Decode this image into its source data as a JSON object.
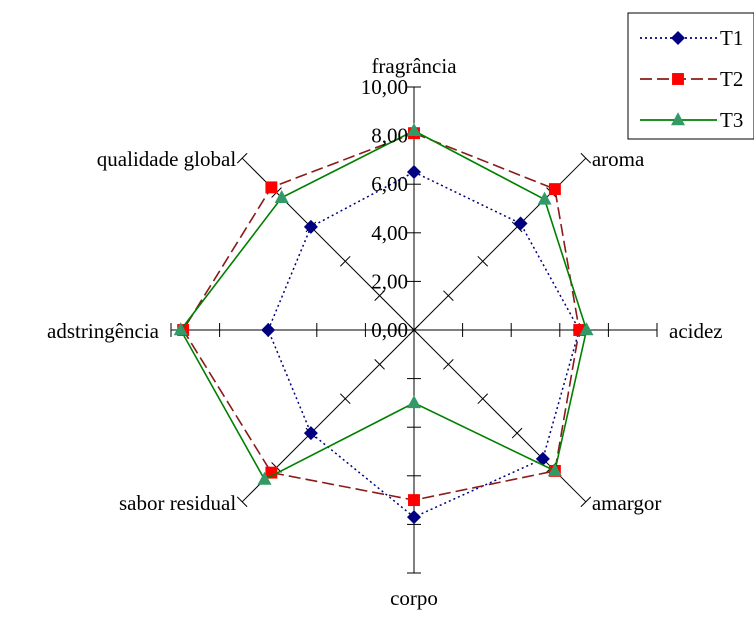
{
  "chart_data": {
    "type": "radar",
    "axes": [
      "fragrância",
      "aroma",
      "acidez",
      "amargor",
      "corpo",
      "sabor residual",
      "adstringência",
      "qualidade global"
    ],
    "rlim": [
      0,
      10
    ],
    "ticks": [
      "0,00",
      "2,00",
      "4,00",
      "6,00",
      "8,00",
      "10,00"
    ],
    "series": [
      {
        "name": "T1",
        "values": [
          6.5,
          6.2,
          6.8,
          7.5,
          7.7,
          6.0,
          6.0,
          6.0
        ],
        "color": "#000080",
        "dash": "dotted",
        "marker": "diamond"
      },
      {
        "name": "T2",
        "values": [
          8.1,
          8.2,
          6.8,
          8.2,
          7.0,
          8.3,
          9.5,
          8.3
        ],
        "color": "#8B1A1A",
        "marker_color": "#ff0000",
        "dash": "dashed",
        "marker": "square"
      },
      {
        "name": "T3",
        "values": [
          8.2,
          7.6,
          7.1,
          8.2,
          3.0,
          8.7,
          9.6,
          7.7
        ],
        "color": "#008000",
        "marker_color": "#339966",
        "dash": "solid",
        "marker": "triangle"
      }
    ],
    "legend_position": "top-right",
    "grid": false
  }
}
